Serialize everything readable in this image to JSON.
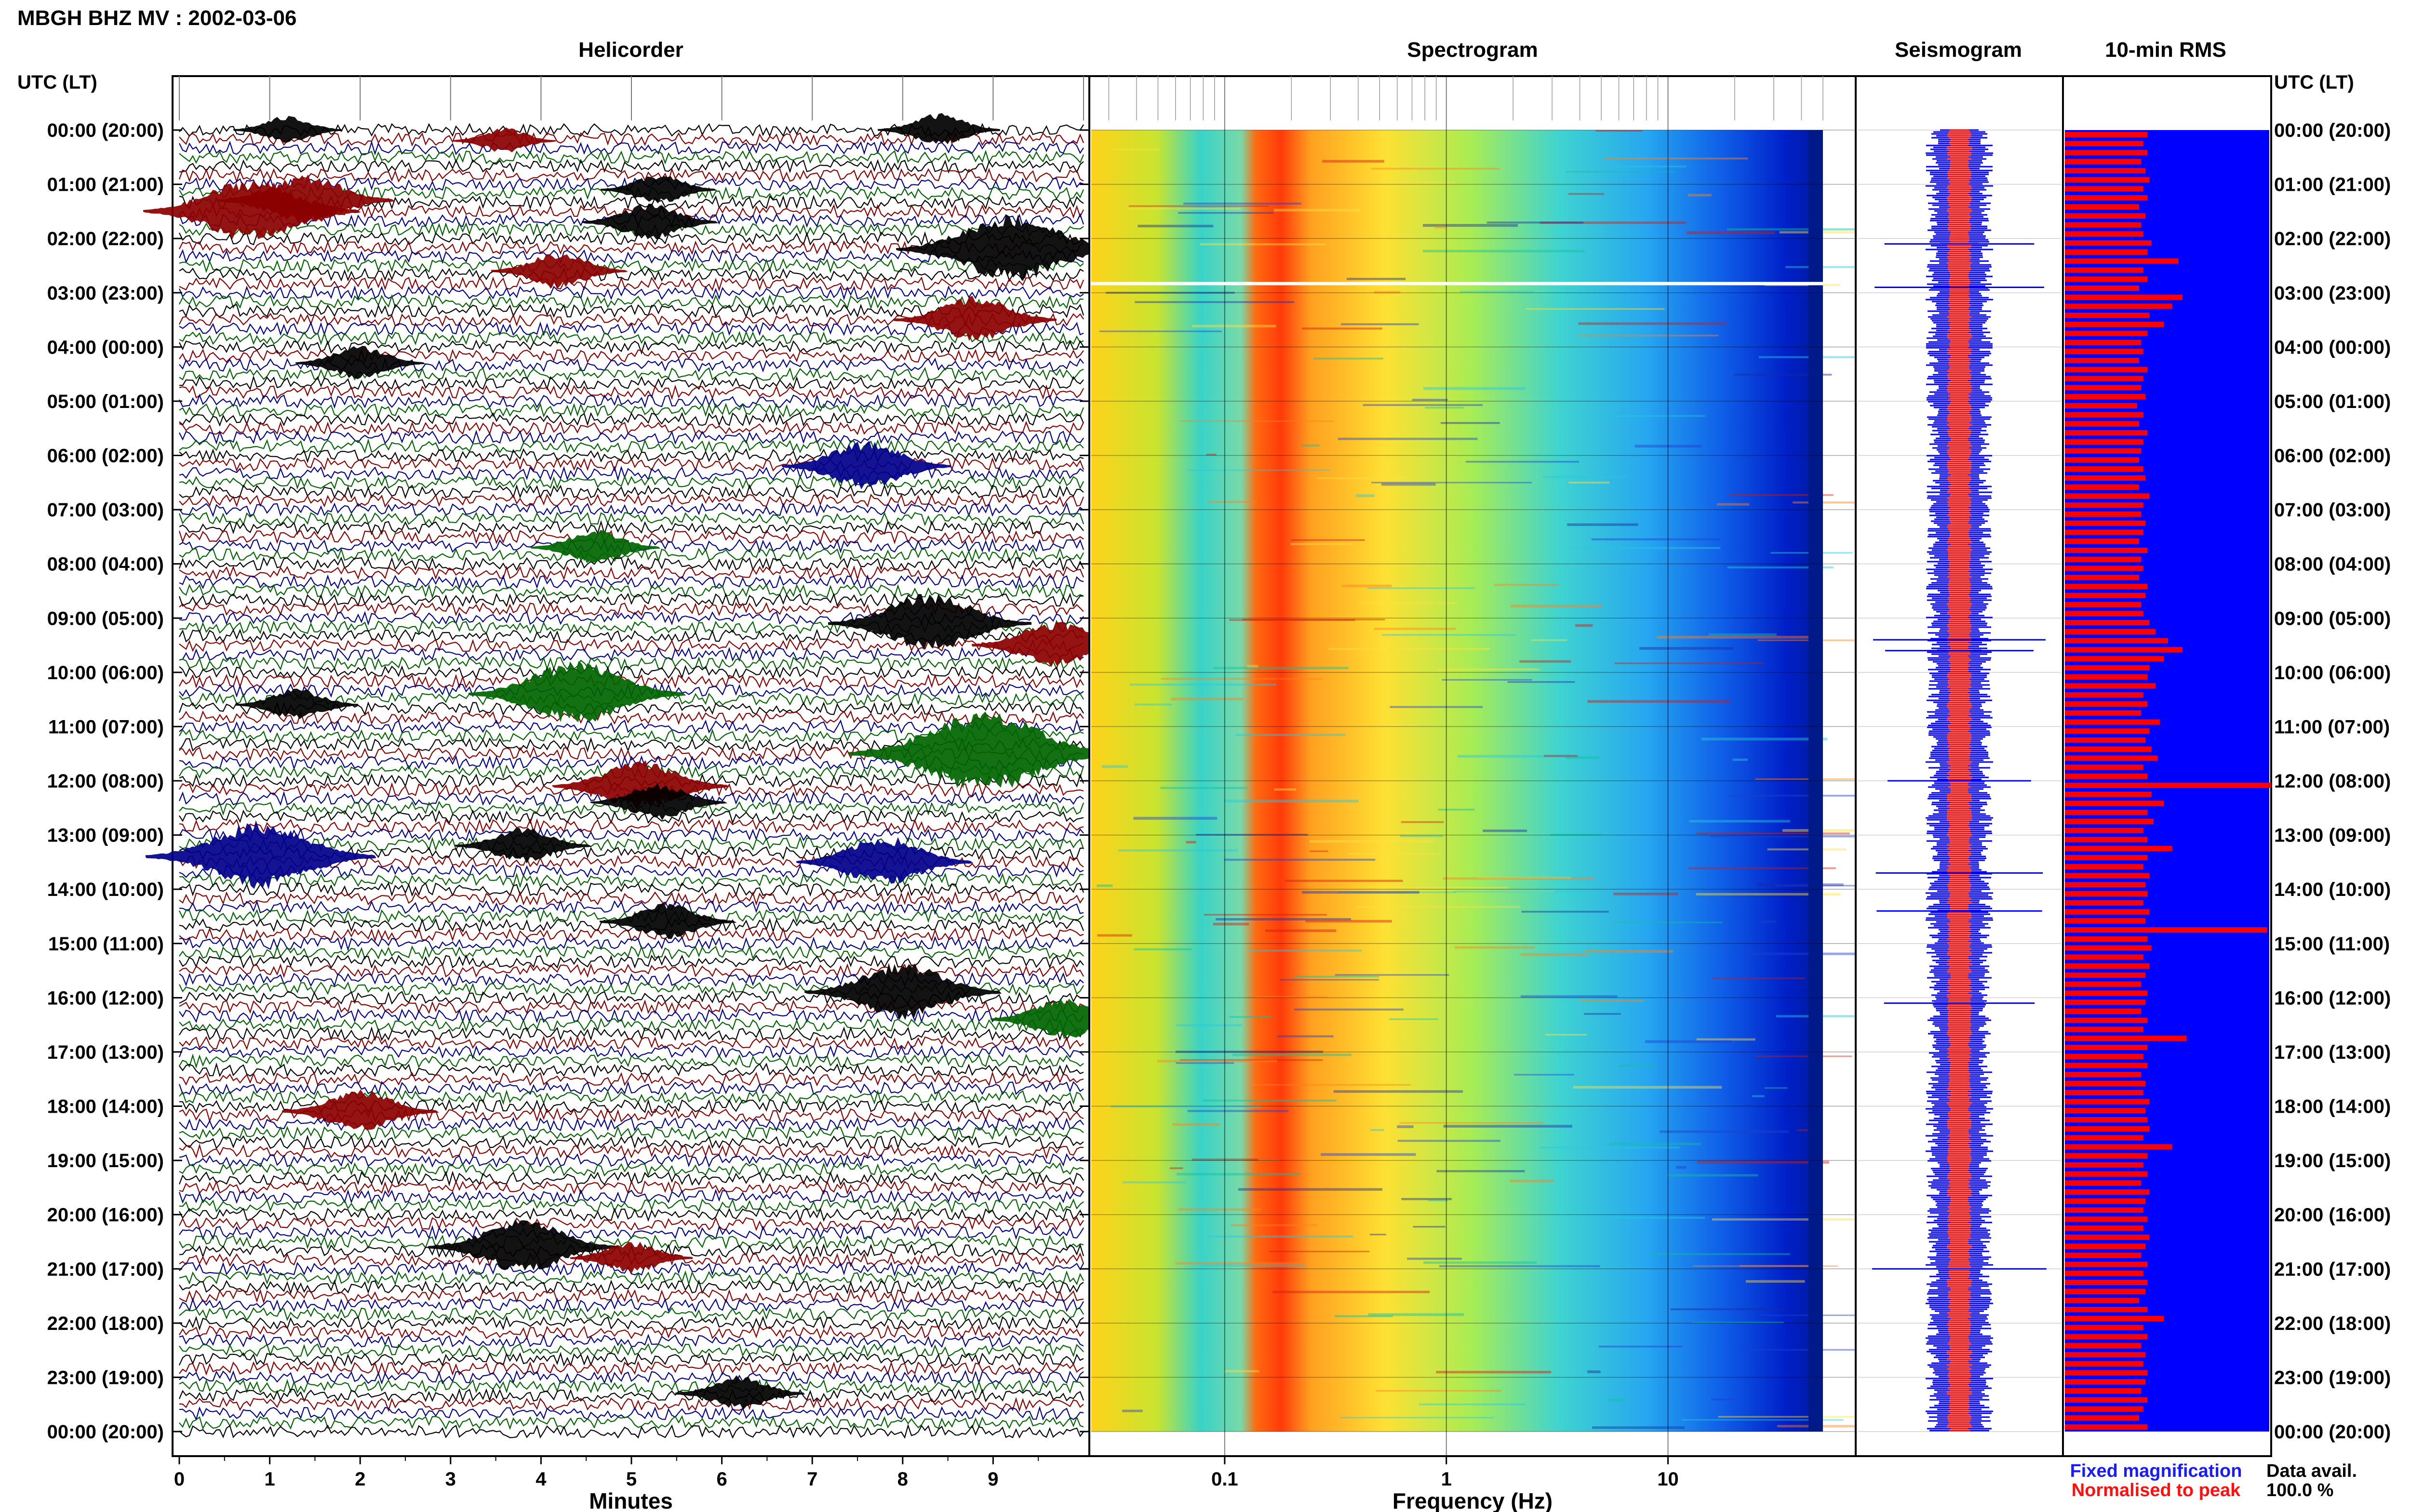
{
  "title": "MBGH BHZ MV : 2002-03-06",
  "time_axis_label": "UTC (LT)",
  "panels": {
    "helicorder": "Helicorder",
    "spectrogram": "Spectrogram",
    "seismogram": "Seismogram",
    "rms": "10-min RMS"
  },
  "time_labels": [
    "00:00 (20:00)",
    "01:00 (21:00)",
    "02:00 (22:00)",
    "03:00 (23:00)",
    "04:00 (00:00)",
    "05:00 (01:00)",
    "06:00 (02:00)",
    "07:00 (03:00)",
    "08:00 (04:00)",
    "09:00 (05:00)",
    "10:00 (06:00)",
    "11:00 (07:00)",
    "12:00 (08:00)",
    "13:00 (09:00)",
    "14:00 (10:00)",
    "15:00 (11:00)",
    "16:00 (12:00)",
    "17:00 (13:00)",
    "18:00 (14:00)",
    "19:00 (15:00)",
    "20:00 (16:00)",
    "21:00 (17:00)",
    "22:00 (18:00)",
    "23:00 (19:00)",
    "00:00 (20:00)"
  ],
  "helicorder_axis": {
    "label": "Minutes",
    "ticks": [
      "0",
      "1",
      "2",
      "3",
      "4",
      "5",
      "6",
      "7",
      "8",
      "9"
    ]
  },
  "spectrogram_axis": {
    "label": "Frequency (Hz)",
    "ticks": [
      "0.1",
      "1",
      "10"
    ]
  },
  "legend": {
    "fixed": "Fixed magnification",
    "normalised": "Normalised to peak",
    "fixed_color": "#1a1aff",
    "normalised_color": "#ff1010"
  },
  "data_availability": {
    "label": "Data avail.",
    "value": "100.0 %"
  },
  "colors": {
    "trace_cycle": [
      "#000000",
      "#8b0000",
      "#00008b",
      "#006400"
    ],
    "rms_background": "#0000ff",
    "rms_bar": "#ff0000",
    "seismogram_fixed": "#0000ff",
    "seismogram_norm": "#ff0000"
  },
  "chart_data": [
    {
      "type": "line",
      "title": "Helicorder",
      "xlabel": "Minutes",
      "xlim": [
        0,
        10
      ],
      "ylabel": "UTC (LT)",
      "rows_per_hour": 6,
      "hours": 24,
      "events": [
        {
          "hour": 0.0,
          "minute": 1.2,
          "amp": 0.6,
          "color": "#000000"
        },
        {
          "hour": 0.0,
          "minute": 8.4,
          "amp": 0.8,
          "color": "#000000"
        },
        {
          "hour": 0.2,
          "minute": 3.6,
          "amp": 0.5,
          "color": "#8b0000"
        },
        {
          "hour": 1.3,
          "minute": 1.4,
          "amp": 1.6,
          "color": "#8b0000"
        },
        {
          "hour": 1.1,
          "minute": 5.3,
          "amp": 0.7,
          "color": "#000000"
        },
        {
          "hour": 1.5,
          "minute": 0.8,
          "amp": 2.2,
          "color": "#8b0000"
        },
        {
          "hour": 1.7,
          "minute": 5.2,
          "amp": 1.0,
          "color": "#000000"
        },
        {
          "hour": 2.2,
          "minute": 9.2,
          "amp": 2.4,
          "color": "#000000"
        },
        {
          "hour": 2.6,
          "minute": 4.2,
          "amp": 1.0,
          "color": "#8b0000"
        },
        {
          "hour": 3.5,
          "minute": 8.8,
          "amp": 1.4,
          "color": "#8b0000"
        },
        {
          "hour": 4.3,
          "minute": 2.0,
          "amp": 0.9,
          "color": "#000000"
        },
        {
          "hour": 6.2,
          "minute": 7.6,
          "amp": 1.5,
          "color": "#00008b"
        },
        {
          "hour": 7.7,
          "minute": 4.6,
          "amp": 0.9,
          "color": "#006400"
        },
        {
          "hour": 9.1,
          "minute": 8.3,
          "amp": 2.0,
          "color": "#000000"
        },
        {
          "hour": 9.5,
          "minute": 9.7,
          "amp": 1.5,
          "color": "#8b0000"
        },
        {
          "hour": 10.4,
          "minute": 4.4,
          "amp": 2.2,
          "color": "#006400"
        },
        {
          "hour": 10.6,
          "minute": 1.3,
          "amp": 0.8,
          "color": "#000000"
        },
        {
          "hour": 11.5,
          "minute": 8.9,
          "amp": 3.0,
          "color": "#006400"
        },
        {
          "hour": 12.1,
          "minute": 5.1,
          "amp": 1.6,
          "color": "#8b0000"
        },
        {
          "hour": 12.4,
          "minute": 5.3,
          "amp": 1.0,
          "color": "#000000"
        },
        {
          "hour": 13.4,
          "minute": 0.9,
          "amp": 2.4,
          "color": "#00008b"
        },
        {
          "hour": 13.2,
          "minute": 3.8,
          "amp": 1.0,
          "color": "#000000"
        },
        {
          "hour": 13.5,
          "minute": 7.8,
          "amp": 1.6,
          "color": "#00008b"
        },
        {
          "hour": 14.6,
          "minute": 5.4,
          "amp": 1.0,
          "color": "#000000"
        },
        {
          "hour": 15.9,
          "minute": 8.0,
          "amp": 1.9,
          "color": "#000000"
        },
        {
          "hour": 16.4,
          "minute": 9.8,
          "amp": 1.2,
          "color": "#006400"
        },
        {
          "hour": 18.1,
          "minute": 2.0,
          "amp": 1.3,
          "color": "#8b0000"
        },
        {
          "hour": 20.6,
          "minute": 3.8,
          "amp": 1.8,
          "color": "#000000"
        },
        {
          "hour": 20.8,
          "minute": 5.0,
          "amp": 0.8,
          "color": "#8b0000"
        },
        {
          "hour": 23.3,
          "minute": 6.2,
          "amp": 0.9,
          "color": "#000000"
        }
      ]
    },
    {
      "type": "heatmap",
      "title": "Spectrogram",
      "xlabel": "Frequency (Hz)",
      "xscale": "log",
      "xlim": [
        0.025,
        50
      ],
      "x_ticks": [
        0.1,
        1,
        10
      ],
      "peak_band_hz": [
        0.15,
        0.25
      ],
      "gap_hour": 2.8
    },
    {
      "type": "line",
      "title": "Seismogram",
      "series": [
        {
          "name": "Fixed magnification",
          "color": "#0000ff"
        },
        {
          "name": "Normalised to peak",
          "color": "#ff0000"
        }
      ],
      "spike_hours": [
        2.1,
        2.9,
        9.4,
        9.6,
        12.0,
        13.7,
        14.4,
        16.1,
        21.0
      ]
    },
    {
      "type": "bar",
      "title": "10-min RMS",
      "orientation": "horizontal",
      "bins_per_hour": 6,
      "hours": 24,
      "xlim": [
        0,
        1
      ],
      "values": [
        0.4,
        0.38,
        0.4,
        0.37,
        0.39,
        0.41,
        0.38,
        0.4,
        0.36,
        0.39,
        0.37,
        0.38,
        0.42,
        0.4,
        0.55,
        0.38,
        0.4,
        0.36,
        0.57,
        0.52,
        0.41,
        0.48,
        0.4,
        0.37,
        0.38,
        0.36,
        0.4,
        0.38,
        0.37,
        0.39,
        0.35,
        0.38,
        0.36,
        0.4,
        0.38,
        0.37,
        0.36,
        0.38,
        0.39,
        0.36,
        0.41,
        0.38,
        0.37,
        0.39,
        0.38,
        0.36,
        0.4,
        0.37,
        0.38,
        0.36,
        0.4,
        0.39,
        0.37,
        0.38,
        0.41,
        0.44,
        0.5,
        0.57,
        0.48,
        0.41,
        0.4,
        0.44,
        0.38,
        0.4,
        0.37,
        0.46,
        0.41,
        0.39,
        0.42,
        0.45,
        0.38,
        0.4,
        1.0,
        0.42,
        0.48,
        0.4,
        0.43,
        0.38,
        0.4,
        0.52,
        0.4,
        0.38,
        0.41,
        0.39,
        0.4,
        0.38,
        0.41,
        0.39,
        0.98,
        0.4,
        0.42,
        0.38,
        0.41,
        0.39,
        0.37,
        0.4,
        0.39,
        0.37,
        0.4,
        0.38,
        0.59,
        0.4,
        0.38,
        0.4,
        0.37,
        0.39,
        0.38,
        0.41,
        0.39,
        0.4,
        0.41,
        0.38,
        0.52,
        0.4,
        0.38,
        0.4,
        0.37,
        0.41,
        0.39,
        0.38,
        0.4,
        0.38,
        0.41,
        0.39,
        0.37,
        0.4,
        0.38,
        0.4,
        0.39,
        0.36,
        0.4,
        0.48,
        0.38,
        0.4,
        0.37,
        0.39,
        0.38,
        0.4,
        0.39,
        0.37,
        0.4,
        0.38,
        0.36,
        0.4
      ]
    }
  ]
}
